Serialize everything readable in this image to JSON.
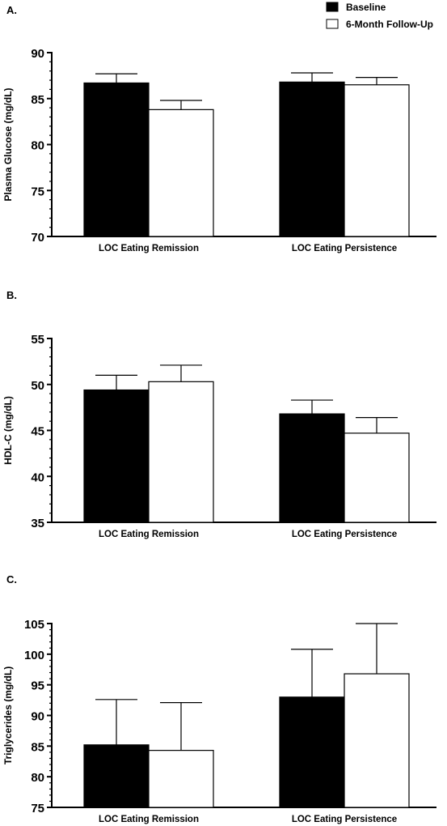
{
  "legend": {
    "items": [
      {
        "label": "Baseline",
        "fill": "#000000"
      },
      {
        "label": "6-Month Follow-Up",
        "fill": "#ffffff"
      }
    ]
  },
  "chart_data": [
    {
      "type": "bar",
      "panel_label": "A.",
      "ylabel": "Plasma Glucose (mg/dL)",
      "xlabel": "",
      "ylim": [
        70,
        90
      ],
      "yticks": [
        70,
        75,
        80,
        85,
        90
      ],
      "categories": [
        "LOC Eating Remission",
        "LOC Eating Persistence"
      ],
      "series": [
        {
          "name": "Baseline",
          "values": [
            86.7,
            86.8
          ],
          "errors": [
            1.0,
            1.0
          ]
        },
        {
          "name": "6-Month Follow-Up",
          "values": [
            83.8,
            86.5
          ],
          "errors": [
            1.0,
            0.8
          ]
        }
      ]
    },
    {
      "type": "bar",
      "panel_label": "B.",
      "ylabel": "HDL-C (mg/dL)",
      "xlabel": "",
      "ylim": [
        35,
        55
      ],
      "yticks": [
        35,
        40,
        45,
        50,
        55
      ],
      "categories": [
        "LOC Eating Remission",
        "LOC Eating Persistence"
      ],
      "series": [
        {
          "name": "Baseline",
          "values": [
            49.4,
            46.8
          ],
          "errors": [
            1.6,
            1.5
          ]
        },
        {
          "name": "6-Month Follow-Up",
          "values": [
            50.3,
            44.7
          ],
          "errors": [
            1.8,
            1.7
          ]
        }
      ]
    },
    {
      "type": "bar",
      "panel_label": "C.",
      "ylabel": "Triglycerides (mg/dL)",
      "xlabel": "",
      "ylim": [
        75,
        105
      ],
      "yticks": [
        75,
        80,
        85,
        90,
        95,
        100,
        105
      ],
      "categories": [
        "LOC Eating Remission",
        "LOC Eating Persistence"
      ],
      "series": [
        {
          "name": "Baseline",
          "values": [
            85.2,
            93.0
          ],
          "errors": [
            7.4,
            7.8
          ]
        },
        {
          "name": "6-Month Follow-Up",
          "values": [
            84.3,
            96.8
          ],
          "errors": [
            7.8,
            8.2
          ]
        }
      ]
    }
  ]
}
